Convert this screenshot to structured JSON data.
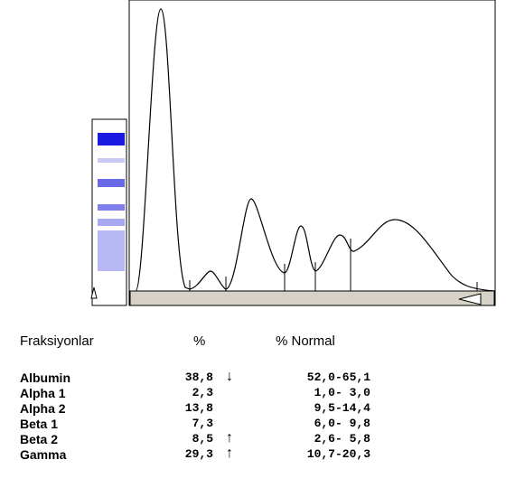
{
  "table": {
    "headers": [
      "Fraksiyonlar",
      "%",
      "% Normal"
    ],
    "rows": [
      {
        "name": "Albumin",
        "percent": "38,8",
        "flag": "↓",
        "normal": "52,0-65,1"
      },
      {
        "name": "Alpha 1",
        "percent": "2,3",
        "normal": "1,0- 3,0"
      },
      {
        "name": "Alpha 2",
        "percent": "13,8",
        "normal": "9,5-14,4"
      },
      {
        "name": "Beta 1",
        "percent": "7,3",
        "normal": "6,0- 9,8"
      },
      {
        "name": "Beta 2",
        "percent": "8,5",
        "flag": "↑",
        "normal": "2,6- 5,8"
      },
      {
        "name": "Gamma",
        "percent": "29,3",
        "flag": "↑",
        "normal": "10,7-20,3"
      }
    ]
  }
}
